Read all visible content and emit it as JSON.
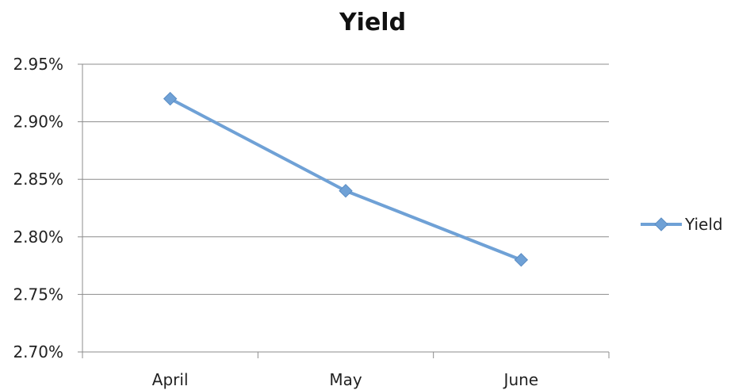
{
  "chart_data": {
    "type": "line",
    "title": "Yield",
    "xlabel": "",
    "ylabel": "",
    "categories": [
      "April",
      "May",
      "June"
    ],
    "series": [
      {
        "name": "Yield",
        "values": [
          2.92,
          2.84,
          2.78
        ],
        "color": "#6fa1d6"
      }
    ],
    "ylim": [
      2.7,
      2.95
    ],
    "yticks": [
      "2.70%",
      "2.75%",
      "2.80%",
      "2.85%",
      "2.90%",
      "2.95%"
    ],
    "grid": true,
    "legend": "right",
    "marker": "diamond"
  }
}
